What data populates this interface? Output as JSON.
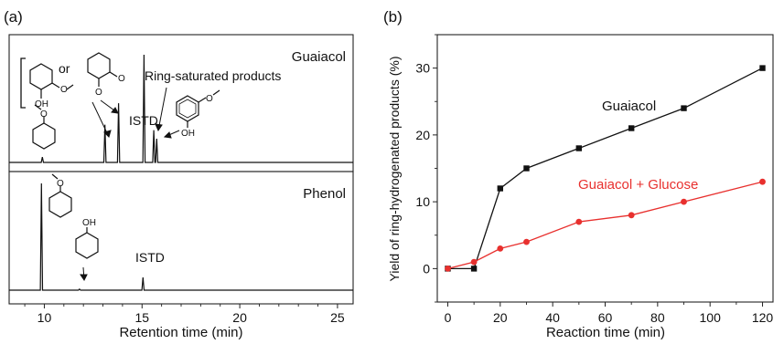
{
  "panels": {
    "a_label": "(a)",
    "b_label": "(b)"
  },
  "colors": {
    "black": "#111111",
    "red": "#e8302e",
    "axis": "#222222"
  },
  "chart_data": [
    {
      "type": "line",
      "panel": "(a)",
      "xlabel": "Retention time (min)",
      "ylabel": "",
      "xlim": [
        8.2,
        25.8
      ],
      "xticks": [
        10,
        15,
        20,
        25
      ],
      "grid": false,
      "traces": [
        {
          "name": "Guaiacol",
          "baseline": 0.9,
          "peaks": [
            {
              "x": 9.9,
              "h": 0.05
            },
            {
              "x": 13.1,
              "h": 0.35
            },
            {
              "x": 13.8,
              "h": 0.55
            },
            {
              "x": 15.1,
              "h": 1.0
            },
            {
              "x": 15.6,
              "h": 0.3
            },
            {
              "x": 15.75,
              "h": 0.22
            }
          ]
        },
        {
          "name": "Phenol",
          "baseline": 0.1,
          "peaks": [
            {
              "x": 9.85,
              "h": 1.0
            },
            {
              "x": 11.8,
              "h": 0.01
            },
            {
              "x": 15.05,
              "h": 0.12
            }
          ]
        }
      ],
      "annotations": {
        "or_text": "or",
        "ring_saturated": "Ring-saturated products",
        "istd": "ISTD",
        "oh": "OH",
        "ome": "O"
      }
    },
    {
      "type": "line",
      "panel": "(b)",
      "xlabel": "Reaction time (min)",
      "ylabel": "Yield of ring-hydrogenated products (%)",
      "xlim": [
        -4,
        124
      ],
      "ylim": [
        -5,
        35
      ],
      "xticks": [
        0,
        20,
        40,
        60,
        80,
        100,
        120
      ],
      "yticks": [
        0,
        10,
        20,
        30
      ],
      "grid": false,
      "series": [
        {
          "name": "Guaiacol",
          "color": "#111111",
          "marker": "square",
          "x": [
            0,
            10,
            20,
            30,
            50,
            70,
            90,
            120
          ],
          "y": [
            0,
            0,
            12,
            15,
            18,
            21,
            24,
            30
          ]
        },
        {
          "name": "Guaiacol + Glucose",
          "color": "#e8302e",
          "marker": "circle",
          "x": [
            0,
            10,
            20,
            30,
            50,
            70,
            90,
            120
          ],
          "y": [
            0,
            1,
            3,
            4,
            7,
            8,
            10,
            13
          ]
        }
      ]
    }
  ]
}
